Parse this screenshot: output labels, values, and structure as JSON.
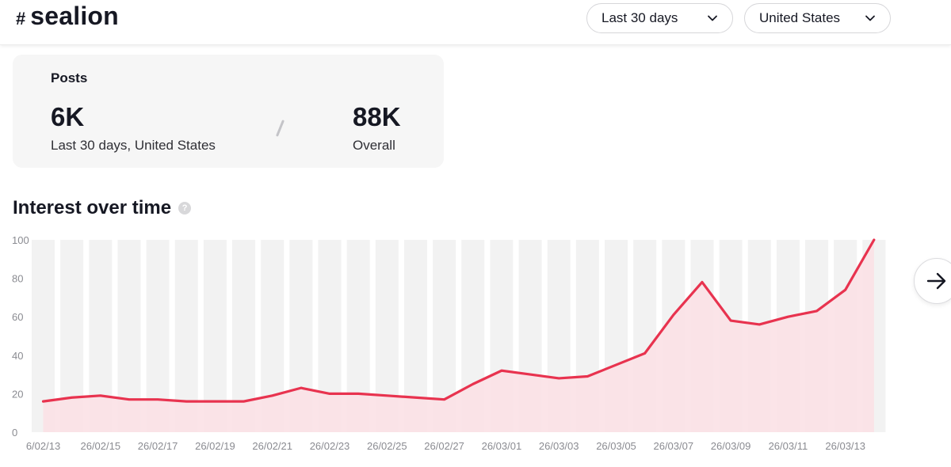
{
  "header": {
    "hash_sign": "#",
    "hashtag": "sealion",
    "period_select": {
      "selected": "Last 30 days",
      "icon": "chevron-down-icon"
    },
    "region_select": {
      "selected": "United States",
      "icon": "chevron-down-icon"
    }
  },
  "posts": {
    "title": "Posts",
    "recent_value": "6K",
    "recent_label": "Last 30 days, United States",
    "overall_value": "88K",
    "overall_label": "Overall"
  },
  "interest": {
    "title": "Interest over time",
    "help_glyph": "?",
    "next_icon": "arrow-right-icon"
  },
  "colors": {
    "line": "#e8334f",
    "fill": "#fbe1e5",
    "band": "#f2f2f2",
    "axis_text": "#8a8b91"
  },
  "chart_data": {
    "type": "area",
    "title": "Interest over time",
    "xlabel": "",
    "ylabel": "",
    "ylim": [
      0,
      100
    ],
    "yticks": [
      0,
      20,
      40,
      60,
      80,
      100
    ],
    "x_tick_labels": [
      "6/02/13",
      "26/02/15",
      "26/02/17",
      "26/02/19",
      "26/02/21",
      "26/02/23",
      "26/02/25",
      "26/02/27",
      "26/03/01",
      "26/03/03",
      "26/03/05",
      "26/03/07",
      "26/03/09",
      "26/03/11",
      "26/03/13"
    ],
    "series": [
      {
        "name": "Interest",
        "values": [
          16,
          18,
          19,
          17,
          17,
          16,
          16,
          16,
          19,
          23,
          20,
          20,
          19,
          18,
          17,
          25,
          32,
          30,
          28,
          29,
          35,
          41,
          61,
          78,
          58,
          56,
          60,
          63,
          74,
          100
        ]
      }
    ]
  }
}
